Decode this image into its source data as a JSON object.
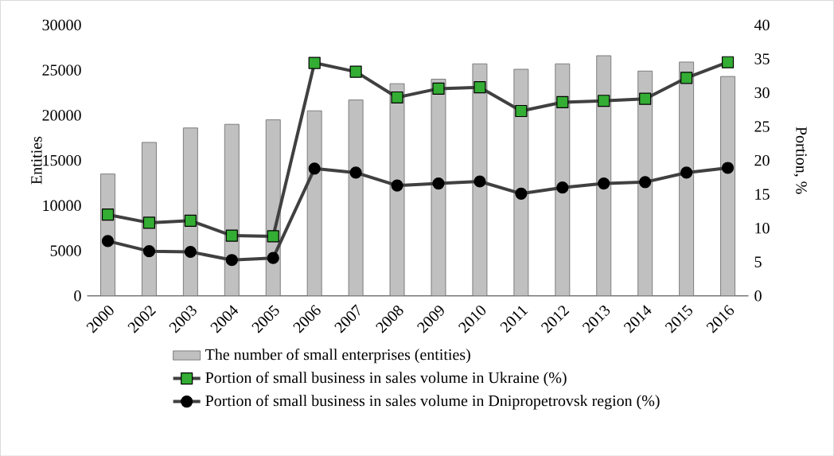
{
  "chart_data": {
    "type": "bar",
    "categories": [
      "2000",
      "2002",
      "2003",
      "2004",
      "2005",
      "2006",
      "2007",
      "2008",
      "2009",
      "2010",
      "2011",
      "2012",
      "2013",
      "2014",
      "2015",
      "2016"
    ],
    "series": [
      {
        "name": "The number of small enterprises (entities)",
        "color": "#c0c0c0",
        "values": [
          13500,
          17000,
          18600,
          19000,
          19500,
          20500,
          21700,
          23500,
          24000,
          25700,
          25100,
          25700,
          26600,
          24900,
          25900,
          24300
        ]
      },
      {
        "name": "Portion of small business in sales volume in Ukraine (%)",
        "type": "line",
        "axis": "y2",
        "marker": "square",
        "color": "#404040",
        "values": [
          12.0,
          10.8,
          11.1,
          8.9,
          8.8,
          34.4,
          33.1,
          29.3,
          30.6,
          30.8,
          27.3,
          28.6,
          28.8,
          29.1,
          32.2,
          34.5
        ]
      },
      {
        "name": "Portion of small business in sales volume in Dnipropetrovsk region (%)",
        "type": "line",
        "axis": "y2",
        "marker": "circle",
        "color": "#404040",
        "values": [
          8.1,
          6.6,
          6.5,
          5.3,
          5.6,
          18.8,
          18.2,
          16.3,
          16.6,
          16.9,
          15.1,
          16.0,
          16.6,
          16.8,
          18.2,
          18.9
        ]
      }
    ],
    "ylabel": "Entities",
    "y2label": "Portion, %",
    "ylim": [
      0,
      30000
    ],
    "yticks": [
      0,
      5000,
      10000,
      15000,
      20000,
      25000,
      30000
    ],
    "y2lim": [
      0,
      40
    ],
    "y2ticks": [
      0,
      5,
      10,
      15,
      20,
      25,
      30,
      35,
      40
    ],
    "legend": "bottom",
    "grid": false
  }
}
